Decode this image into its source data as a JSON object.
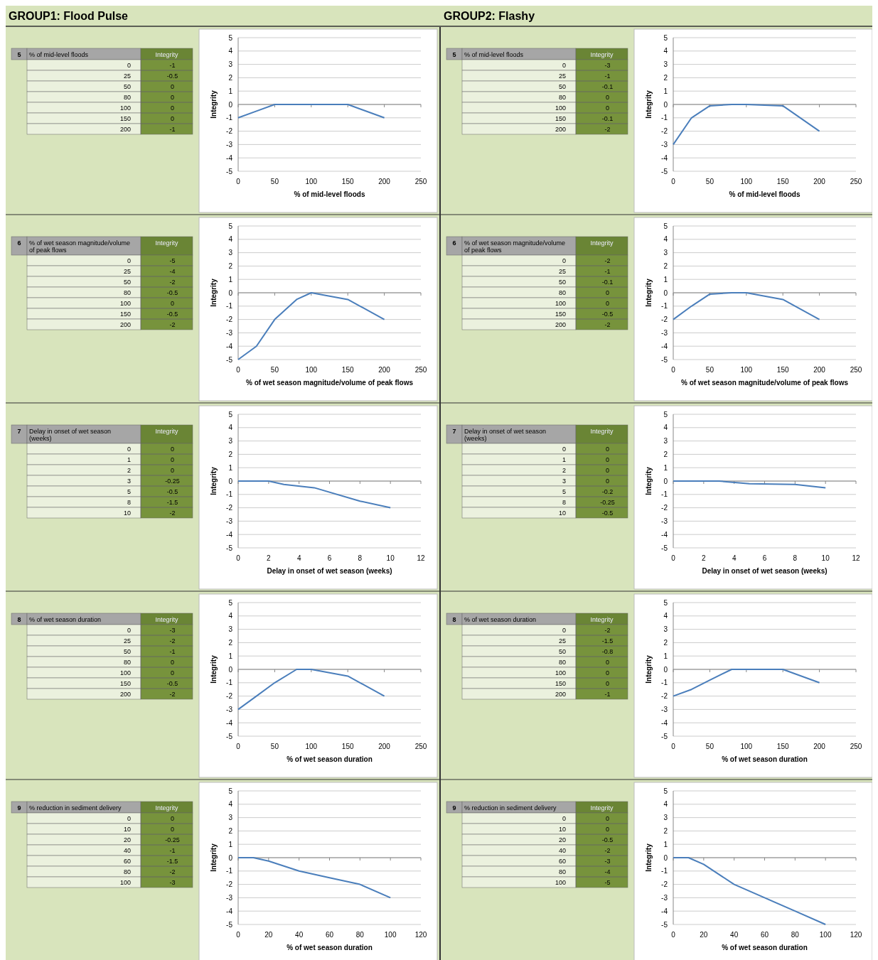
{
  "chart_data": [
    {
      "type": "other",
      "title": "GROUP1: Flood Pulse"
    },
    {
      "type": "other",
      "title": "GROUP2: Flashy"
    },
    {
      "type": "heatmap",
      "data_labels": true,
      "annotations": [
        "5"
      ],
      "ylabel": "% of mid-level floods",
      "categories": [
        "Integrity"
      ],
      "y_categories": [
        "0",
        "25",
        "50",
        "80",
        "100",
        "150",
        "200"
      ],
      "cells": [
        [
          -1
        ],
        [
          -0.5
        ],
        [
          0
        ],
        [
          0
        ],
        [
          0
        ],
        [
          0
        ],
        [
          -1
        ]
      ]
    },
    {
      "type": "line",
      "xlabel": "% of mid-level floods",
      "ylabel": "Integrity",
      "x": [
        0,
        25,
        50,
        80,
        100,
        150,
        200
      ],
      "series": [
        {
          "color": "#4a7ebb",
          "values": [
            -1,
            -0.5,
            0,
            0,
            0,
            0,
            -1
          ]
        }
      ],
      "xlim": [
        0,
        250
      ],
      "xticks": [
        0,
        50,
        100,
        150,
        200,
        250
      ],
      "ylim": [
        -5,
        5
      ],
      "yticks": [
        -5,
        -4,
        -3,
        -2,
        -1,
        0,
        1,
        2,
        3,
        4,
        5
      ],
      "grid": "y"
    },
    {
      "type": "heatmap",
      "data_labels": true,
      "annotations": [
        "5"
      ],
      "ylabel": "% of mid-level floods",
      "categories": [
        "Integrity"
      ],
      "y_categories": [
        "0",
        "25",
        "50",
        "80",
        "100",
        "150",
        "200"
      ],
      "cells": [
        [
          -3
        ],
        [
          -1
        ],
        [
          -0.1
        ],
        [
          0
        ],
        [
          0
        ],
        [
          -0.1
        ],
        [
          -2
        ]
      ]
    },
    {
      "type": "line",
      "xlabel": "% of mid-level floods",
      "ylabel": "Integrity",
      "x": [
        0,
        25,
        50,
        80,
        100,
        150,
        200
      ],
      "series": [
        {
          "color": "#4a7ebb",
          "values": [
            -3,
            -1,
            -0.1,
            0,
            0,
            -0.1,
            -2
          ]
        }
      ],
      "xlim": [
        0,
        250
      ],
      "xticks": [
        0,
        50,
        100,
        150,
        200,
        250
      ],
      "ylim": [
        -5,
        5
      ],
      "yticks": [
        -5,
        -4,
        -3,
        -2,
        -1,
        0,
        1,
        2,
        3,
        4,
        5
      ],
      "grid": "y"
    },
    {
      "type": "heatmap",
      "data_labels": true,
      "annotations": [
        "6"
      ],
      "ylabel": "% of wet season magnitude/volume of peak flows",
      "categories": [
        "Integrity"
      ],
      "y_categories": [
        "0",
        "25",
        "50",
        "80",
        "100",
        "150",
        "200"
      ],
      "cells": [
        [
          -5
        ],
        [
          -4
        ],
        [
          -2
        ],
        [
          -0.5
        ],
        [
          0
        ],
        [
          -0.5
        ],
        [
          -2
        ]
      ]
    },
    {
      "type": "line",
      "xlabel": "% of wet season magnitude/volume of peak flows",
      "ylabel": "Integrity",
      "x": [
        0,
        25,
        50,
        80,
        100,
        150,
        200
      ],
      "series": [
        {
          "color": "#4a7ebb",
          "values": [
            -5,
            -4,
            -2,
            -0.5,
            0,
            -0.5,
            -2
          ]
        }
      ],
      "xlim": [
        0,
        250
      ],
      "xticks": [
        0,
        50,
        100,
        150,
        200,
        250
      ],
      "ylim": [
        -5,
        5
      ],
      "yticks": [
        -5,
        -4,
        -3,
        -2,
        -1,
        0,
        1,
        2,
        3,
        4,
        5
      ],
      "grid": "y"
    },
    {
      "type": "heatmap",
      "data_labels": true,
      "annotations": [
        "6"
      ],
      "ylabel": "% of wet season magnitude/volume of peak flows",
      "categories": [
        "Integrity"
      ],
      "y_categories": [
        "0",
        "25",
        "50",
        "80",
        "100",
        "150",
        "200"
      ],
      "cells": [
        [
          -2
        ],
        [
          -1
        ],
        [
          -0.1
        ],
        [
          0
        ],
        [
          0
        ],
        [
          -0.5
        ],
        [
          -2
        ]
      ]
    },
    {
      "type": "line",
      "xlabel": "% of wet season magnitude/volume of peak flows",
      "ylabel": "Integrity",
      "x": [
        0,
        25,
        50,
        80,
        100,
        150,
        200
      ],
      "series": [
        {
          "color": "#4a7ebb",
          "values": [
            -2,
            -1,
            -0.1,
            0,
            0,
            -0.5,
            -2
          ]
        }
      ],
      "xlim": [
        0,
        250
      ],
      "xticks": [
        0,
        50,
        100,
        150,
        200,
        250
      ],
      "ylim": [
        -5,
        5
      ],
      "yticks": [
        -5,
        -4,
        -3,
        -2,
        -1,
        0,
        1,
        2,
        3,
        4,
        5
      ],
      "grid": "y"
    },
    {
      "type": "heatmap",
      "data_labels": true,
      "annotations": [
        "7"
      ],
      "ylabel": "Delay in onset of wet season (weeks)",
      "categories": [
        "Integrity"
      ],
      "y_categories": [
        "0",
        "1",
        "2",
        "3",
        "5",
        "8",
        "10"
      ],
      "cells": [
        [
          0
        ],
        [
          0
        ],
        [
          0
        ],
        [
          -0.25
        ],
        [
          -0.5
        ],
        [
          -1.5
        ],
        [
          -2
        ]
      ]
    },
    {
      "type": "line",
      "xlabel": "Delay in onset of wet season  (weeks)",
      "ylabel": "Integrity",
      "x": [
        0,
        1,
        2,
        3,
        5,
        8,
        10
      ],
      "series": [
        {
          "color": "#4a7ebb",
          "values": [
            0,
            0,
            0,
            -0.25,
            -0.5,
            -1.5,
            -2
          ]
        }
      ],
      "xlim": [
        0,
        12
      ],
      "xticks": [
        0,
        2,
        4,
        6,
        8,
        10,
        12
      ],
      "ylim": [
        -5,
        5
      ],
      "yticks": [
        -5,
        -4,
        -3,
        -2,
        -1,
        0,
        1,
        2,
        3,
        4,
        5
      ],
      "grid": "y"
    },
    {
      "type": "heatmap",
      "data_labels": true,
      "annotations": [
        "7"
      ],
      "ylabel": "Delay in onset of wet season (weeks)",
      "categories": [
        "Integrity"
      ],
      "y_categories": [
        "0",
        "1",
        "2",
        "3",
        "5",
        "8",
        "10"
      ],
      "cells": [
        [
          0
        ],
        [
          0
        ],
        [
          0
        ],
        [
          0
        ],
        [
          -0.2
        ],
        [
          -0.25
        ],
        [
          -0.5
        ]
      ]
    },
    {
      "type": "line",
      "xlabel": "Delay in onset of wet season  (weeks)",
      "ylabel": "Integrity",
      "x": [
        0,
        1,
        2,
        3,
        5,
        8,
        10
      ],
      "series": [
        {
          "color": "#4a7ebb",
          "values": [
            0,
            0,
            0,
            0,
            -0.2,
            -0.25,
            -0.5
          ]
        }
      ],
      "xlim": [
        0,
        12
      ],
      "xticks": [
        0,
        2,
        4,
        6,
        8,
        10,
        12
      ],
      "ylim": [
        -5,
        5
      ],
      "yticks": [
        -5,
        -4,
        -3,
        -2,
        -1,
        0,
        1,
        2,
        3,
        4,
        5
      ],
      "grid": "y"
    },
    {
      "type": "heatmap",
      "data_labels": true,
      "annotations": [
        "8"
      ],
      "ylabel": "% of wet season duration",
      "categories": [
        "Integrity"
      ],
      "y_categories": [
        "0",
        "25",
        "50",
        "80",
        "100",
        "150",
        "200"
      ],
      "cells": [
        [
          -3
        ],
        [
          -2
        ],
        [
          -1
        ],
        [
          0
        ],
        [
          0
        ],
        [
          -0.5
        ],
        [
          -2
        ]
      ]
    },
    {
      "type": "line",
      "xlabel": "% of wet season duration",
      "ylabel": "Integrity",
      "x": [
        0,
        25,
        50,
        80,
        100,
        150,
        200
      ],
      "series": [
        {
          "color": "#4a7ebb",
          "values": [
            -3,
            -2,
            -1,
            0,
            0,
            -0.5,
            -2
          ]
        }
      ],
      "xlim": [
        0,
        250
      ],
      "xticks": [
        0,
        50,
        100,
        150,
        200,
        250
      ],
      "ylim": [
        -5,
        5
      ],
      "yticks": [
        -5,
        -4,
        -3,
        -2,
        -1,
        0,
        1,
        2,
        3,
        4,
        5
      ],
      "grid": "y"
    },
    {
      "type": "heatmap",
      "data_labels": true,
      "annotations": [
        "8"
      ],
      "ylabel": "% of wet season duration",
      "categories": [
        "Integrity"
      ],
      "y_categories": [
        "0",
        "25",
        "50",
        "80",
        "100",
        "150",
        "200"
      ],
      "cells": [
        [
          -2
        ],
        [
          -1.5
        ],
        [
          -0.8
        ],
        [
          0
        ],
        [
          0
        ],
        [
          0
        ],
        [
          -1
        ]
      ]
    },
    {
      "type": "line",
      "xlabel": "% of wet season duration",
      "ylabel": "Integrity",
      "x": [
        0,
        25,
        50,
        80,
        100,
        150,
        200
      ],
      "series": [
        {
          "color": "#4a7ebb",
          "values": [
            -2,
            -1.5,
            -0.8,
            0,
            0,
            0,
            -1
          ]
        }
      ],
      "xlim": [
        0,
        250
      ],
      "xticks": [
        0,
        50,
        100,
        150,
        200,
        250
      ],
      "ylim": [
        -5,
        5
      ],
      "yticks": [
        -5,
        -4,
        -3,
        -2,
        -1,
        0,
        1,
        2,
        3,
        4,
        5
      ],
      "grid": "y"
    },
    {
      "type": "heatmap",
      "data_labels": true,
      "annotations": [
        "9"
      ],
      "ylabel": "% reduction in sediment delivery",
      "categories": [
        "Integrity"
      ],
      "y_categories": [
        "0",
        "10",
        "20",
        "40",
        "60",
        "80",
        "100"
      ],
      "cells": [
        [
          0
        ],
        [
          0
        ],
        [
          -0.25
        ],
        [
          -1
        ],
        [
          -1.5
        ],
        [
          -2
        ],
        [
          -3
        ]
      ]
    },
    {
      "type": "line",
      "xlabel": "% of wet season duration",
      "ylabel": "Integrity",
      "x": [
        0,
        10,
        20,
        40,
        60,
        80,
        100
      ],
      "series": [
        {
          "color": "#4a7ebb",
          "values": [
            0,
            0,
            -0.25,
            -1,
            -1.5,
            -2,
            -3
          ]
        }
      ],
      "xlim": [
        0,
        120
      ],
      "xticks": [
        0,
        20,
        40,
        60,
        80,
        100,
        120
      ],
      "ylim": [
        -5,
        5
      ],
      "yticks": [
        -5,
        -4,
        -3,
        -2,
        -1,
        0,
        1,
        2,
        3,
        4,
        5
      ],
      "grid": "y"
    },
    {
      "type": "heatmap",
      "data_labels": true,
      "annotations": [
        "9"
      ],
      "ylabel": "% reduction in sediment delivery",
      "categories": [
        "Integrity"
      ],
      "y_categories": [
        "0",
        "10",
        "20",
        "40",
        "60",
        "80",
        "100"
      ],
      "cells": [
        [
          0
        ],
        [
          0
        ],
        [
          -0.5
        ],
        [
          -2
        ],
        [
          -3
        ],
        [
          -4
        ],
        [
          -5
        ]
      ]
    },
    {
      "type": "line",
      "xlabel": "% of wet season duration",
      "ylabel": "Integrity",
      "x": [
        0,
        10,
        20,
        40,
        60,
        80,
        100
      ],
      "series": [
        {
          "color": "#4a7ebb",
          "values": [
            0,
            0,
            -0.5,
            -2,
            -3,
            -4,
            -5
          ]
        }
      ],
      "xlim": [
        0,
        120
      ],
      "xticks": [
        0,
        20,
        40,
        60,
        80,
        100,
        120
      ],
      "ylim": [
        -5,
        5
      ],
      "yticks": [
        -5,
        -4,
        -3,
        -2,
        -1,
        0,
        1,
        2,
        3,
        4,
        5
      ],
      "grid": "y"
    }
  ]
}
